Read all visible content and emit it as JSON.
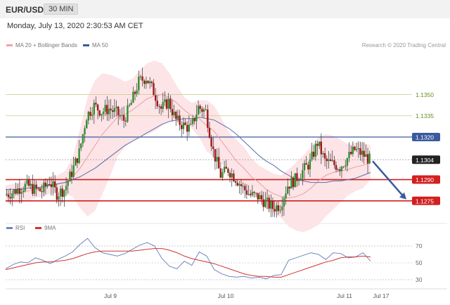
{
  "header": {
    "symbol": "EUR/USD",
    "timeframe": "30 MIN"
  },
  "datetime": "Monday, July 13, 2020 2:30:53 AM CET",
  "legend": {
    "main": [
      {
        "name": "MA 20 + Bollinger Bands",
        "color": "#f4a0a8"
      },
      {
        "name": "MA 50",
        "color": "#3a5a9c"
      }
    ],
    "rsi": [
      {
        "name": "RSI",
        "color": "#6f86c0"
      },
      {
        "name": "9MA",
        "color": "#d23232"
      }
    ]
  },
  "credit": "Research © 2020 Trading Central",
  "chart_data": [
    {
      "type": "candlestick",
      "x_ticks": [
        "Jul 9",
        "Jul 10",
        "Jul 11",
        "Jul 17"
      ],
      "ylim": [
        1.1262,
        1.1378
      ],
      "levels": [
        {
          "value": 1.135,
          "label": "1.1350",
          "style": "thin-olive"
        },
        {
          "value": 1.1335,
          "label": "1.1335",
          "style": "thin-olive"
        },
        {
          "value": 1.132,
          "label": "1.1320",
          "style": "blue"
        },
        {
          "value": 1.1304,
          "label": "1.1304",
          "style": "current"
        },
        {
          "value": 1.129,
          "label": "1.1290",
          "style": "red"
        },
        {
          "value": 1.1275,
          "label": "1.1275",
          "style": "red"
        }
      ],
      "close_path": [
        1.1279,
        1.1281,
        1.1284,
        1.1286,
        1.1283,
        1.1282,
        1.1289,
        1.128,
        1.1283,
        1.1295,
        1.1309,
        1.1335,
        1.1342,
        1.1338,
        1.134,
        1.1337,
        1.1332,
        1.1344,
        1.1359,
        1.1362,
        1.1352,
        1.134,
        1.1345,
        1.1332,
        1.1328,
        1.1326,
        1.1341,
        1.1338,
        1.131,
        1.1293,
        1.1297,
        1.1291,
        1.1284,
        1.1279,
        1.1278,
        1.1274,
        1.127,
        1.1272,
        1.1286,
        1.129,
        1.1296,
        1.1302,
        1.1316,
        1.1303,
        1.1301,
        1.1299,
        1.1305,
        1.1311,
        1.1308,
        1.1304
      ],
      "ma20": [
        1.128,
        1.128,
        1.1281,
        1.1282,
        1.1283,
        1.1284,
        1.1286,
        1.1287,
        1.1288,
        1.1292,
        1.1298,
        1.1306,
        1.1314,
        1.1322,
        1.1328,
        1.1334,
        1.1336,
        1.1339,
        1.1343,
        1.1347,
        1.1349,
        1.135,
        1.1348,
        1.1344,
        1.1339,
        1.1335,
        1.1333,
        1.1328,
        1.1324,
        1.1317,
        1.131,
        1.1303,
        1.1298,
        1.1292,
        1.1288,
        1.1283,
        1.128,
        1.1278,
        1.1277,
        1.1278,
        1.128,
        1.1284,
        1.1289,
        1.1293,
        1.1295,
        1.1296,
        1.1297,
        1.1299,
        1.13,
        1.1302
      ],
      "bb_upper": [
        1.1286,
        1.1287,
        1.1288,
        1.1289,
        1.1289,
        1.129,
        1.1292,
        1.1293,
        1.1296,
        1.1306,
        1.1326,
        1.1348,
        1.136,
        1.1365,
        1.1364,
        1.1362,
        1.1359,
        1.1361,
        1.1367,
        1.1372,
        1.1374,
        1.1372,
        1.1365,
        1.1356,
        1.1348,
        1.1344,
        1.1346,
        1.1346,
        1.1342,
        1.1333,
        1.1323,
        1.1318,
        1.1313,
        1.1305,
        1.13,
        1.1297,
        1.1294,
        1.1293,
        1.1297,
        1.1302,
        1.1307,
        1.1313,
        1.132,
        1.1322,
        1.1321,
        1.1318,
        1.1315,
        1.1316,
        1.1316,
        1.1314
      ],
      "bb_lower": [
        1.1274,
        1.1273,
        1.1274,
        1.1275,
        1.1277,
        1.1278,
        1.128,
        1.1281,
        1.128,
        1.1278,
        1.127,
        1.1264,
        1.1268,
        1.128,
        1.1292,
        1.1306,
        1.1313,
        1.1317,
        1.1319,
        1.1322,
        1.1324,
        1.1328,
        1.1331,
        1.1332,
        1.133,
        1.1326,
        1.132,
        1.131,
        1.1306,
        1.1301,
        1.1297,
        1.1288,
        1.1283,
        1.1279,
        1.1276,
        1.1269,
        1.1266,
        1.1263,
        1.1257,
        1.1254,
        1.1253,
        1.1255,
        1.1258,
        1.1264,
        1.1269,
        1.1274,
        1.1279,
        1.1282,
        1.1284,
        1.129
      ],
      "ma50": [
        1.1283,
        1.1283,
        1.1283,
        1.1284,
        1.1284,
        1.1285,
        1.1286,
        1.1287,
        1.1288,
        1.129,
        1.1292,
        1.1295,
        1.1298,
        1.1302,
        1.1306,
        1.131,
        1.1314,
        1.1317,
        1.132,
        1.1323,
        1.1326,
        1.1329,
        1.1331,
        1.1332,
        1.1333,
        1.1333,
        1.1334,
        1.1333,
        1.1332,
        1.1329,
        1.1326,
        1.1322,
        1.1317,
        1.1312,
        1.1307,
        1.1303,
        1.13,
        1.1296,
        1.1293,
        1.129,
        1.1289,
        1.1288,
        1.1288,
        1.1288,
        1.1289,
        1.1289,
        1.129,
        1.1291,
        1.1293,
        1.1295
      ],
      "forecast": {
        "from": 1.1304,
        "to": 1.1275
      }
    },
    {
      "type": "line",
      "ylim": [
        20,
        80
      ],
      "ticks": [
        30,
        50,
        70
      ],
      "series": [
        {
          "name": "RSI",
          "values": [
            43,
            48,
            51,
            50,
            56,
            53,
            49,
            54,
            58,
            63,
            72,
            79,
            68,
            62,
            60,
            58,
            61,
            66,
            71,
            74,
            70,
            55,
            46,
            43,
            52,
            47,
            63,
            58,
            42,
            37,
            34,
            33,
            34,
            32,
            33,
            31,
            35,
            36,
            53,
            56,
            59,
            62,
            60,
            54,
            62,
            61,
            56,
            57,
            62,
            52
          ]
        },
        {
          "name": "9MA",
          "values": [
            42,
            44,
            46,
            48,
            50,
            51,
            51,
            52,
            53,
            55,
            58,
            61,
            63,
            64,
            64,
            64,
            64,
            64,
            65,
            66,
            67,
            67,
            65,
            62,
            58,
            55,
            53,
            51,
            49,
            46,
            43,
            40,
            37,
            35,
            34,
            34,
            33,
            33,
            36,
            39,
            42,
            45,
            48,
            51,
            53,
            56,
            57,
            57,
            58,
            57
          ]
        }
      ]
    }
  ]
}
